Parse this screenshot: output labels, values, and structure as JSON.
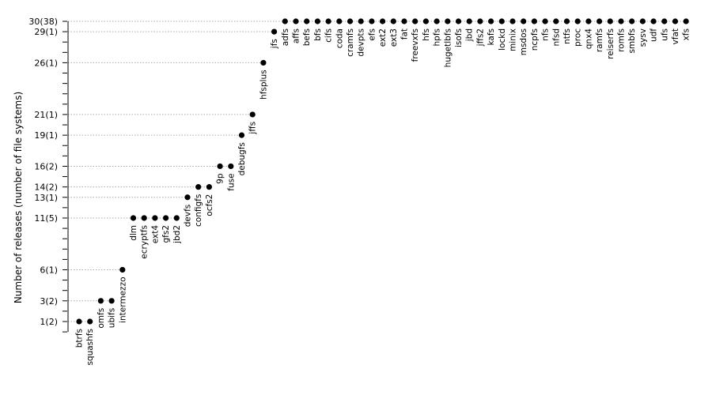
{
  "chart_data": {
    "type": "scatter",
    "ylabel": "Number of releases (number of file systems)",
    "ylim": [
      0,
      30
    ],
    "grid": "dotted guide lines at labeled levels",
    "y_tick_labels": [
      {
        "value": 1,
        "label": "1(2)"
      },
      {
        "value": 3,
        "label": "3(2)"
      },
      {
        "value": 6,
        "label": "6(1)"
      },
      {
        "value": 11,
        "label": "11(5)"
      },
      {
        "value": 13,
        "label": "13(1)"
      },
      {
        "value": 14,
        "label": "14(2)"
      },
      {
        "value": 16,
        "label": "16(2)"
      },
      {
        "value": 19,
        "label": "19(1)"
      },
      {
        "value": 21,
        "label": "21(1)"
      },
      {
        "value": 26,
        "label": "26(1)"
      },
      {
        "value": 29,
        "label": "29(1)"
      },
      {
        "value": 30,
        "label": "30(38)"
      }
    ],
    "points": [
      {
        "name": "btrfs",
        "y": 1
      },
      {
        "name": "squashfs",
        "y": 1
      },
      {
        "name": "omfs",
        "y": 3
      },
      {
        "name": "ubifs",
        "y": 3
      },
      {
        "name": "intermezzo",
        "y": 6
      },
      {
        "name": "dlm",
        "y": 11
      },
      {
        "name": "ecryptfs",
        "y": 11
      },
      {
        "name": "ext4",
        "y": 11
      },
      {
        "name": "gfs2",
        "y": 11
      },
      {
        "name": "jbd2",
        "y": 11
      },
      {
        "name": "devfs",
        "y": 13
      },
      {
        "name": "configfs",
        "y": 14
      },
      {
        "name": "ocfs2",
        "y": 14
      },
      {
        "name": "9p",
        "y": 16
      },
      {
        "name": "fuse",
        "y": 16
      },
      {
        "name": "debugfs",
        "y": 19
      },
      {
        "name": "jffs",
        "y": 21
      },
      {
        "name": "hfsplus",
        "y": 26
      },
      {
        "name": "jfs",
        "y": 29
      },
      {
        "name": "adfs",
        "y": 30
      },
      {
        "name": "affs",
        "y": 30
      },
      {
        "name": "befs",
        "y": 30
      },
      {
        "name": "bfs",
        "y": 30
      },
      {
        "name": "cifs",
        "y": 30
      },
      {
        "name": "coda",
        "y": 30
      },
      {
        "name": "cramfs",
        "y": 30
      },
      {
        "name": "devpts",
        "y": 30
      },
      {
        "name": "efs",
        "y": 30
      },
      {
        "name": "ext2",
        "y": 30
      },
      {
        "name": "ext3",
        "y": 30
      },
      {
        "name": "fat",
        "y": 30
      },
      {
        "name": "freevxfs",
        "y": 30
      },
      {
        "name": "hfs",
        "y": 30
      },
      {
        "name": "hpfs",
        "y": 30
      },
      {
        "name": "hugetlbfs",
        "y": 30
      },
      {
        "name": "isofs",
        "y": 30
      },
      {
        "name": "jbd",
        "y": 30
      },
      {
        "name": "jffs2",
        "y": 30
      },
      {
        "name": "kafs",
        "y": 30
      },
      {
        "name": "lockd",
        "y": 30
      },
      {
        "name": "minix",
        "y": 30
      },
      {
        "name": "msdos",
        "y": 30
      },
      {
        "name": "ncpfs",
        "y": 30
      },
      {
        "name": "nfs",
        "y": 30
      },
      {
        "name": "nfsd",
        "y": 30
      },
      {
        "name": "ntfs",
        "y": 30
      },
      {
        "name": "proc",
        "y": 30
      },
      {
        "name": "qnx4",
        "y": 30
      },
      {
        "name": "ramfs",
        "y": 30
      },
      {
        "name": "reiserfs",
        "y": 30
      },
      {
        "name": "romfs",
        "y": 30
      },
      {
        "name": "smbfs",
        "y": 30
      },
      {
        "name": "sysv",
        "y": 30
      },
      {
        "name": "udf",
        "y": 30
      },
      {
        "name": "ufs",
        "y": 30
      },
      {
        "name": "vfat",
        "y": 30
      },
      {
        "name": "xfs",
        "y": 30
      }
    ]
  }
}
